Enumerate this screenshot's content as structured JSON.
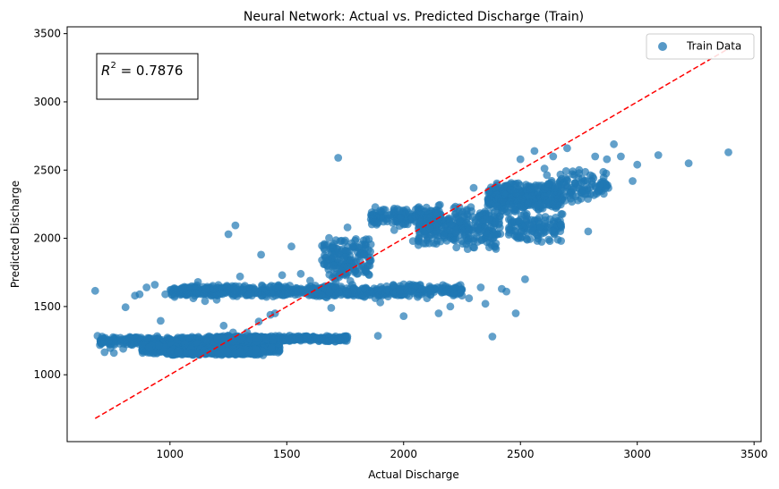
{
  "chart_data": {
    "type": "scatter",
    "title": "Neural Network: Actual vs. Predicted Discharge (Train)",
    "xlabel": "Actual Discharge",
    "ylabel": "Predicted Discharge",
    "xlim": [
      560,
      3530
    ],
    "ylim": [
      510,
      3550
    ],
    "xticks": [
      1000,
      1500,
      2000,
      2500,
      3000,
      3500
    ],
    "yticks": [
      1000,
      1500,
      2000,
      2500,
      3000,
      3500
    ],
    "grid": false,
    "legend": {
      "position": "top-right",
      "entries": [
        "Train Data"
      ]
    },
    "annotation": {
      "prefix": "R",
      "sup": "2",
      "suffix": " = 0.7876",
      "position": "top-left"
    },
    "reference_line": {
      "style": "dashed",
      "color": "#ff0000",
      "x": [
        680,
        3390
      ],
      "y": [
        680,
        3390
      ]
    },
    "series": [
      {
        "name": "Train Data",
        "color": "#1f77b4",
        "points": [
          [
            680,
            1615
          ],
          [
            690,
            1285
          ],
          [
            710,
            1280
          ],
          [
            720,
            1165
          ],
          [
            745,
            1195
          ],
          [
            760,
            1160
          ],
          [
            800,
            1190
          ],
          [
            810,
            1495
          ],
          [
            850,
            1580
          ],
          [
            870,
            1590
          ],
          [
            900,
            1640
          ],
          [
            905,
            1270
          ],
          [
            935,
            1660
          ],
          [
            960,
            1395
          ],
          [
            980,
            1590
          ],
          [
            1020,
            1570
          ],
          [
            1060,
            1625
          ],
          [
            1080,
            1640
          ],
          [
            1100,
            1560
          ],
          [
            1120,
            1680
          ],
          [
            1150,
            1540
          ],
          [
            1200,
            1550
          ],
          [
            1250,
            2030
          ],
          [
            1280,
            2095
          ],
          [
            1230,
            1360
          ],
          [
            1270,
            1310
          ],
          [
            1300,
            1720
          ],
          [
            1330,
            1310
          ],
          [
            1380,
            1390
          ],
          [
            1390,
            1880
          ],
          [
            1430,
            1440
          ],
          [
            1450,
            1450
          ],
          [
            1480,
            1730
          ],
          [
            1520,
            1940
          ],
          [
            1560,
            1740
          ],
          [
            1600,
            1690
          ],
          [
            1650,
            1580
          ],
          [
            1690,
            1490
          ],
          [
            1720,
            2590
          ],
          [
            1760,
            2080
          ],
          [
            1800,
            1740
          ],
          [
            1850,
            1800
          ],
          [
            1890,
            1285
          ],
          [
            1900,
            1530
          ],
          [
            1960,
            2060
          ],
          [
            2000,
            1430
          ],
          [
            2060,
            1570
          ],
          [
            2100,
            1560
          ],
          [
            2150,
            1450
          ],
          [
            2200,
            1500
          ],
          [
            2250,
            1580
          ],
          [
            2280,
            1560
          ],
          [
            2300,
            2370
          ],
          [
            2330,
            1640
          ],
          [
            2350,
            1520
          ],
          [
            2380,
            1280
          ],
          [
            2400,
            2390
          ],
          [
            2420,
            1630
          ],
          [
            2440,
            1610
          ],
          [
            2480,
            1450
          ],
          [
            2500,
            2580
          ],
          [
            2520,
            1700
          ],
          [
            2560,
            2640
          ],
          [
            2600,
            2040
          ],
          [
            2640,
            2600
          ],
          [
            2660,
            1990
          ],
          [
            2700,
            2660
          ],
          [
            2760,
            2290
          ],
          [
            2790,
            2050
          ],
          [
            2820,
            2600
          ],
          [
            2850,
            2400
          ],
          [
            2870,
            2580
          ],
          [
            2900,
            2690
          ],
          [
            2930,
            2600
          ],
          [
            2980,
            2420
          ],
          [
            3000,
            2540
          ],
          [
            3090,
            2610
          ],
          [
            3220,
            2550
          ],
          [
            3390,
            2630
          ],
          [
            2270,
            2200
          ],
          [
            2150,
            2240
          ],
          [
            2050,
            2160
          ],
          [
            2040,
            1980
          ],
          [
            2140,
            1960
          ],
          [
            2250,
            1980
          ],
          [
            2350,
            2050
          ],
          [
            2450,
            2190
          ],
          [
            2550,
            2310
          ],
          [
            2620,
            2400
          ],
          [
            2700,
            2430
          ],
          [
            2770,
            2350
          ],
          [
            1780,
            1660
          ],
          [
            1830,
            1880
          ],
          [
            1700,
            1800
          ],
          [
            1760,
            1600
          ],
          [
            1710,
            1680
          ]
        ]
      }
    ],
    "clusters": [
      {
        "x": [
          700,
          1210
        ],
        "y": [
          1215,
          1285
        ],
        "n": 300
      },
      {
        "x": [
          880,
          1470
        ],
        "y": [
          1150,
          1250
        ],
        "n": 900
      },
      {
        "x": [
          1000,
          1400
        ],
        "y": [
          1140,
          1200
        ],
        "n": 350
      },
      {
        "x": [
          1200,
          1760
        ],
        "y": [
          1240,
          1290
        ],
        "n": 350
      },
      {
        "x": [
          1000,
          1720
        ],
        "y": [
          1570,
          1660
        ],
        "n": 400
      },
      {
        "x": [
          1620,
          2000
        ],
        "y": [
          1560,
          1650
        ],
        "n": 200
      },
      {
        "x": [
          1650,
          1860
        ],
        "y": [
          1680,
          2020
        ],
        "n": 160
      },
      {
        "x": [
          1860,
          2160
        ],
        "y": [
          2080,
          2230
        ],
        "n": 160
      },
      {
        "x": [
          1950,
          2250
        ],
        "y": [
          1570,
          1670
        ],
        "n": 140
      },
      {
        "x": [
          2060,
          2420
        ],
        "y": [
          1900,
          2260
        ],
        "n": 280
      },
      {
        "x": [
          2360,
          2680
        ],
        "y": [
          2180,
          2420
        ],
        "n": 320
      },
      {
        "x": [
          2450,
          2680
        ],
        "y": [
          1950,
          2200
        ],
        "n": 120
      },
      {
        "x": [
          2600,
          2880
        ],
        "y": [
          2260,
          2530
        ],
        "n": 110
      }
    ]
  }
}
